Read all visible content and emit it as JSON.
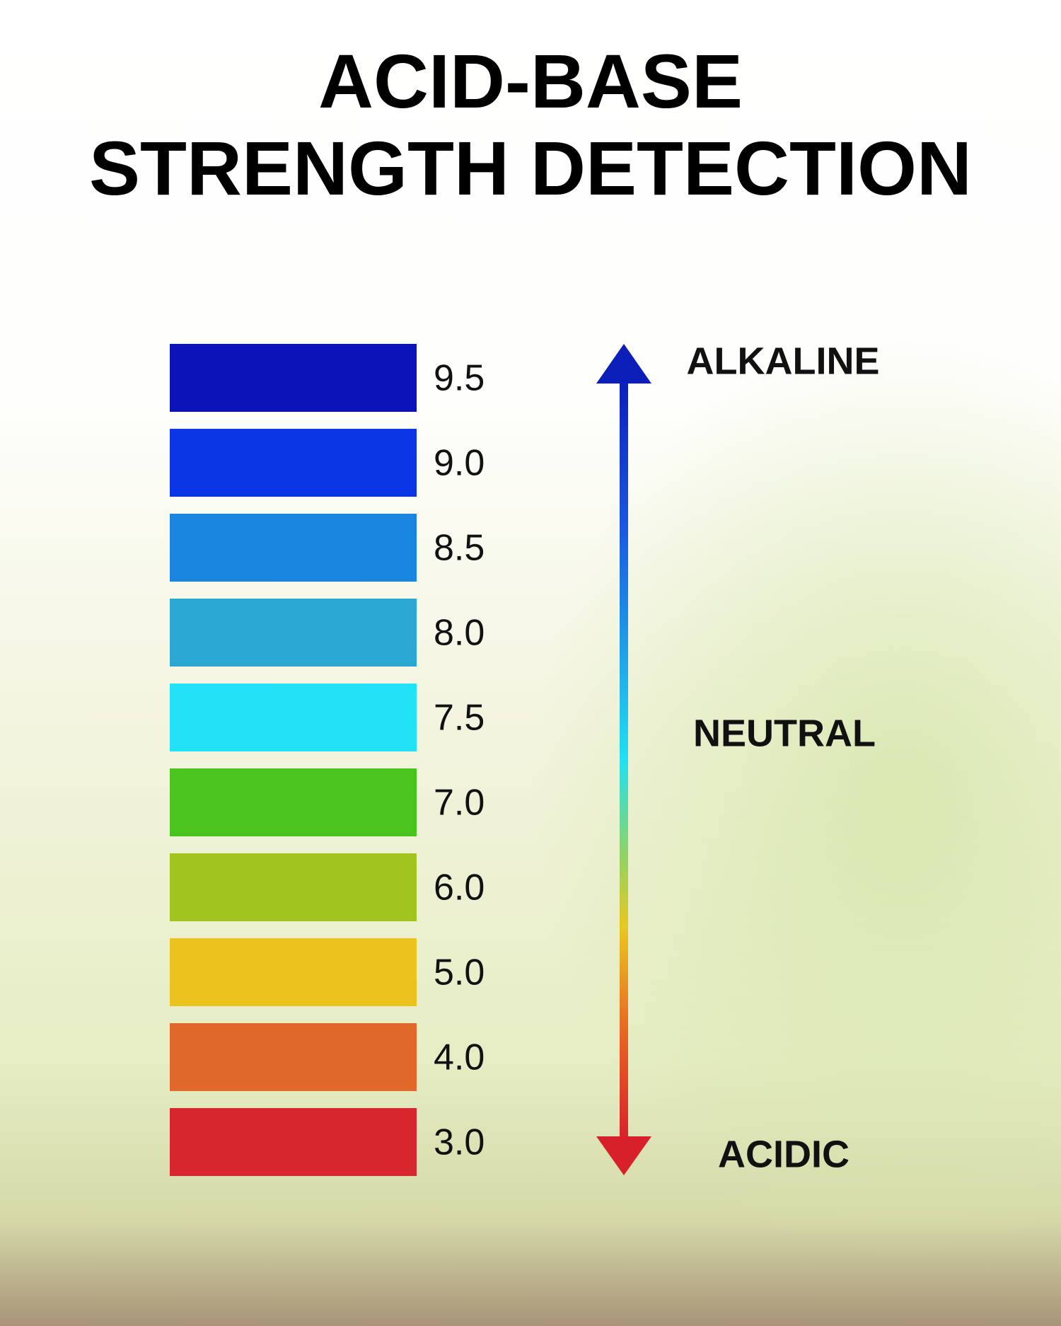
{
  "title": [
    "ACID-BASE",
    "STRENGTH DETECTION"
  ],
  "swatches": [
    {
      "label": "9.5",
      "color": "#0a14b8"
    },
    {
      "label": "9.0",
      "color": "#0a36e6"
    },
    {
      "label": "8.5",
      "color": "#1a86e0"
    },
    {
      "label": "8.0",
      "color": "#2aa8d2"
    },
    {
      "label": "7.5",
      "color": "#22e2f6"
    },
    {
      "label": "7.0",
      "color": "#48c41c"
    },
    {
      "label": "6.0",
      "color": "#a2c41e"
    },
    {
      "label": "5.0",
      "color": "#ecc21e"
    },
    {
      "label": "4.0",
      "color": "#e0682a"
    },
    {
      "label": "3.0",
      "color": "#d6262e"
    }
  ],
  "scale": {
    "top": "ALKALINE",
    "middle": "NEUTRAL",
    "bottom": "ACIDIC"
  }
}
